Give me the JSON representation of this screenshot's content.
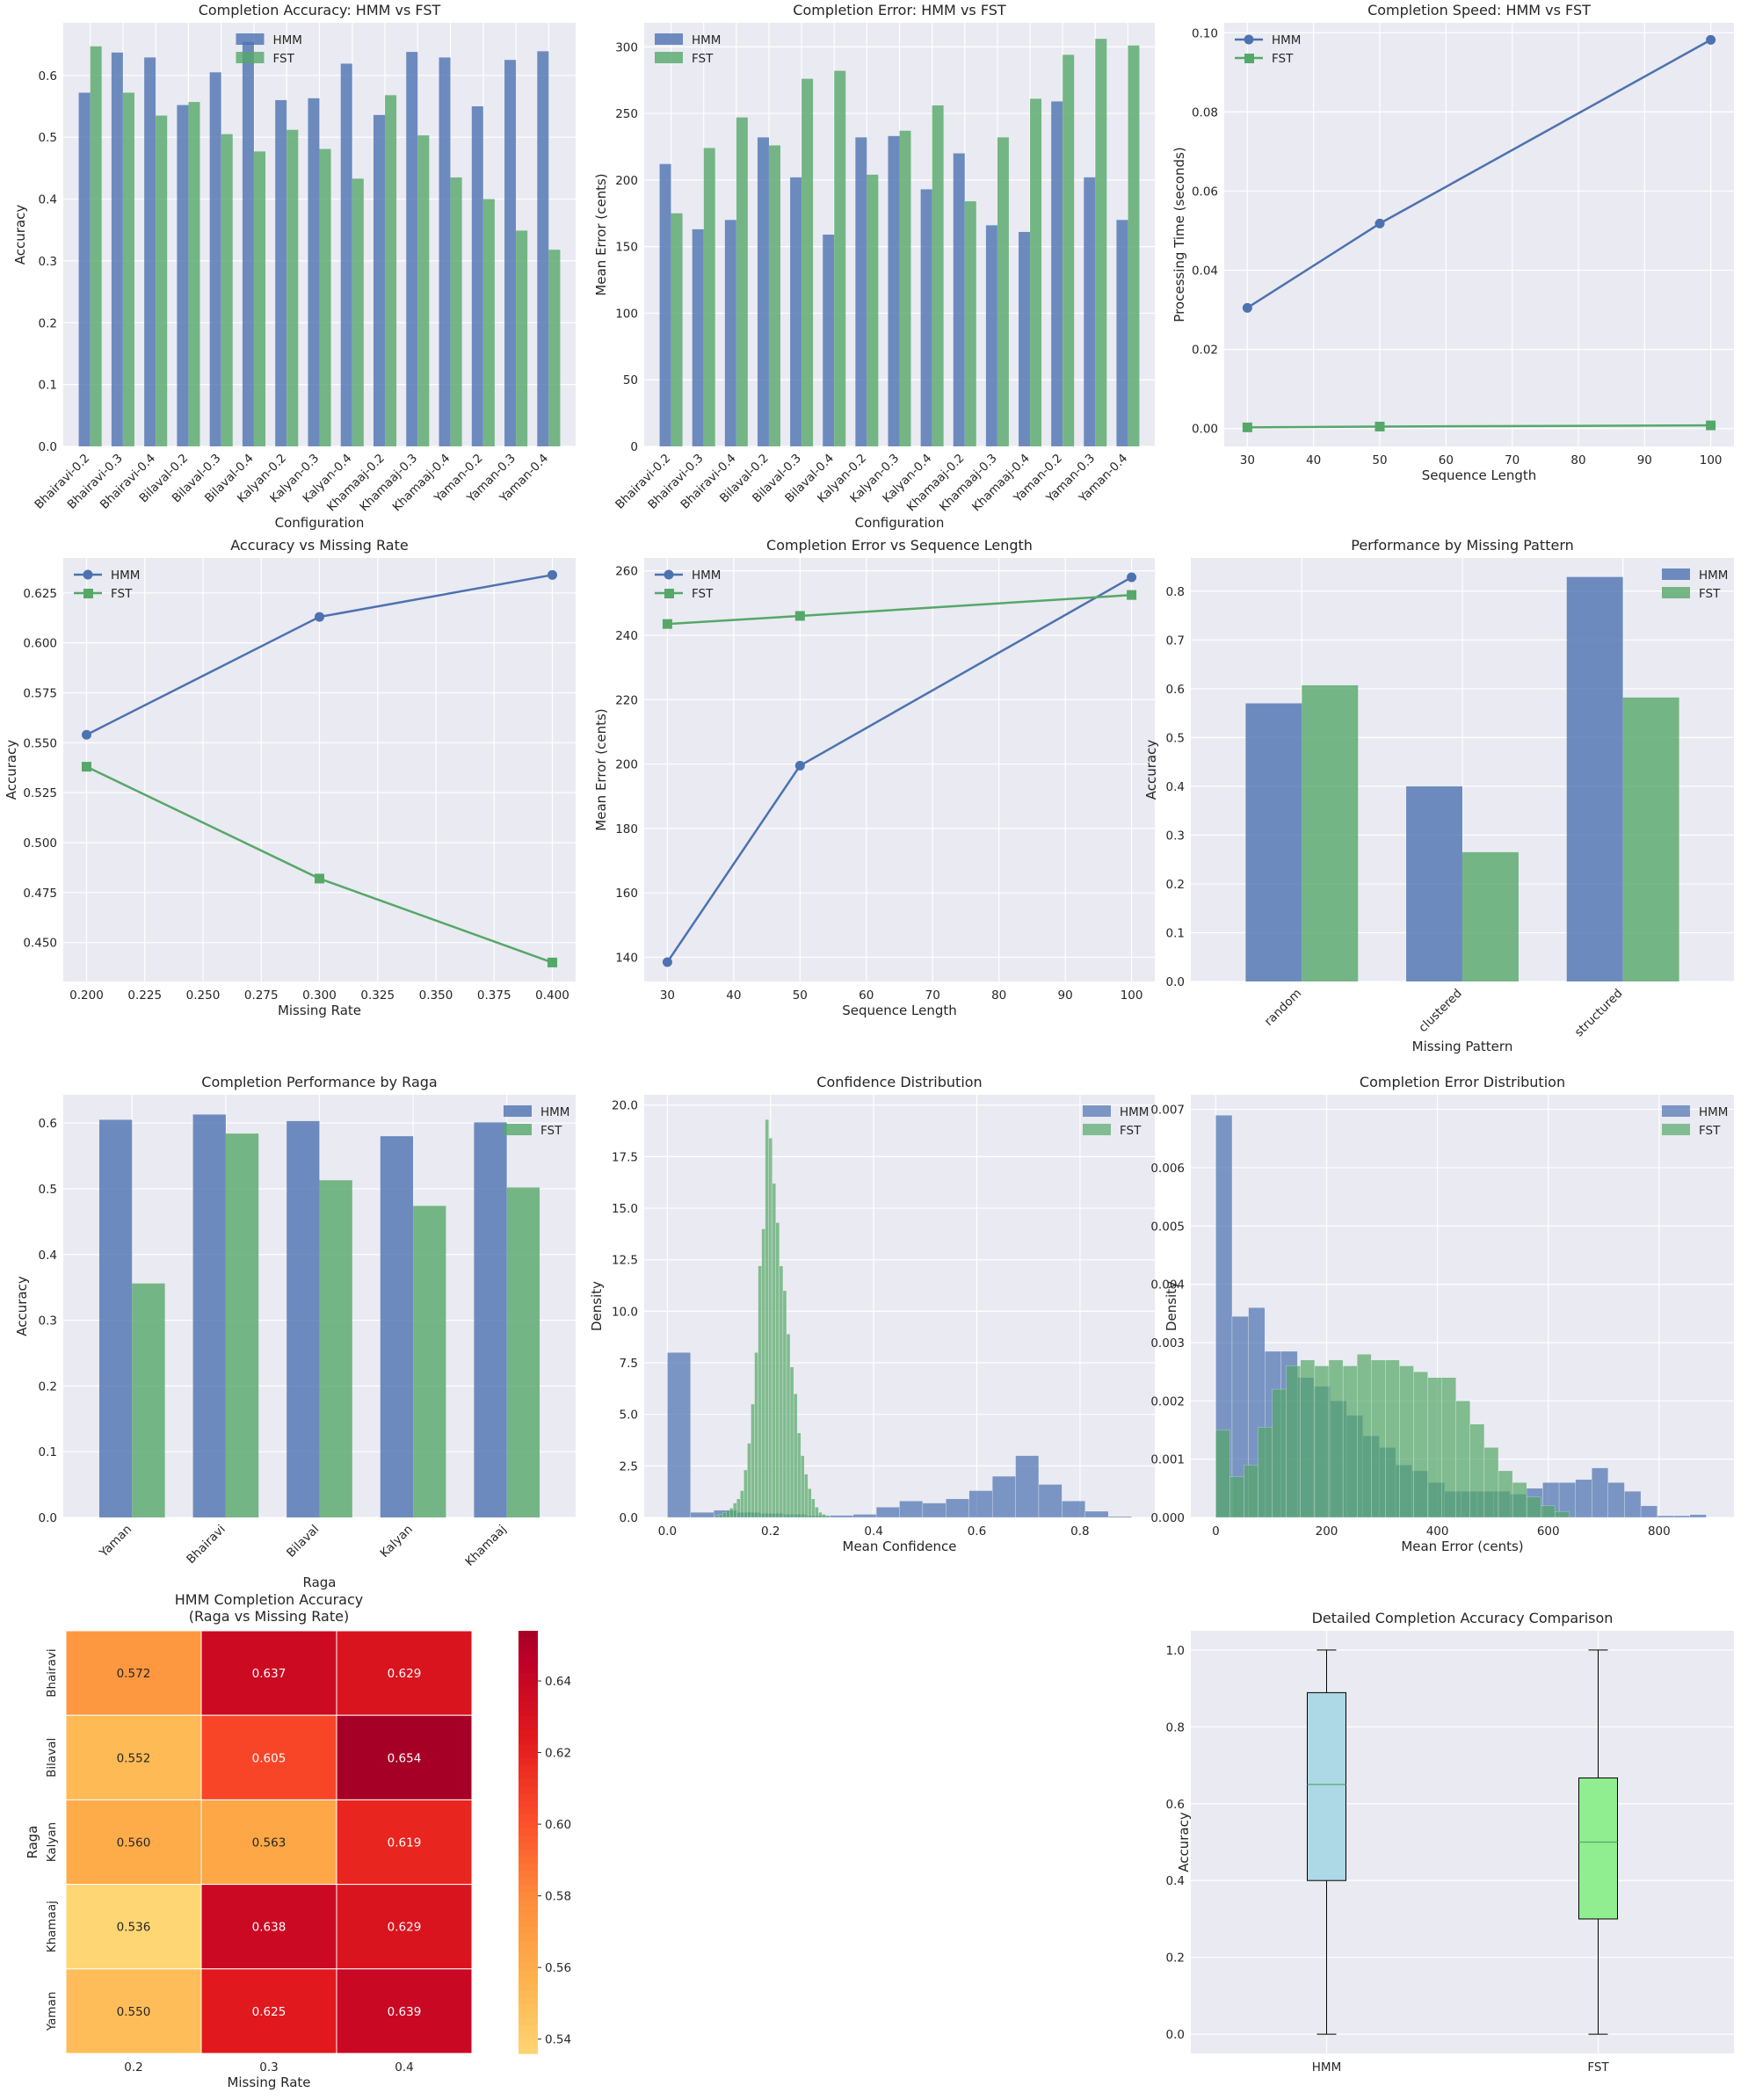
{
  "colors": {
    "hmm": "#4c72b0",
    "fst": "#55a868",
    "panel_bg": "#eaeaf2",
    "grid": "#ffffff",
    "box_hmm": "#add8e6",
    "box_fst": "#90ee90"
  },
  "legend": {
    "hmm": "HMM",
    "fst": "FST"
  },
  "chart_data": [
    {
      "id": "acc_bar",
      "type": "bar",
      "title": "Completion Accuracy: HMM vs FST",
      "xlabel": "Configuration",
      "ylabel": "Accuracy",
      "ylim": [
        0,
        0.685
      ],
      "yticks": [
        0.0,
        0.1,
        0.2,
        0.3,
        0.4,
        0.5,
        0.6
      ],
      "ytick_labels": [
        "0.0",
        "0.1",
        "0.2",
        "0.3",
        "0.4",
        "0.5",
        "0.6"
      ],
      "categories": [
        "Bhairavi-0.2",
        "Bhairavi-0.3",
        "Bhairavi-0.4",
        "Bilaval-0.2",
        "Bilaval-0.3",
        "Bilaval-0.4",
        "Kalyan-0.2",
        "Kalyan-0.3",
        "Kalyan-0.4",
        "Khamaaj-0.2",
        "Khamaaj-0.3",
        "Khamaaj-0.4",
        "Yaman-0.2",
        "Yaman-0.3",
        "Yaman-0.4"
      ],
      "series": [
        {
          "name": "HMM",
          "values": [
            0.572,
            0.637,
            0.629,
            0.552,
            0.605,
            0.654,
            0.56,
            0.563,
            0.619,
            0.536,
            0.638,
            0.629,
            0.55,
            0.625,
            0.639
          ]
        },
        {
          "name": "FST",
          "values": [
            0.647,
            0.572,
            0.535,
            0.557,
            0.505,
            0.477,
            0.512,
            0.481,
            0.433,
            0.568,
            0.503,
            0.435,
            0.4,
            0.349,
            0.318
          ]
        }
      ],
      "legend_loc": "upper center"
    },
    {
      "id": "err_bar",
      "type": "bar",
      "title": "Completion Error: HMM vs FST",
      "xlabel": "Configuration",
      "ylabel": "Mean Error (cents)",
      "ylim": [
        0,
        318
      ],
      "yticks": [
        0,
        50,
        100,
        150,
        200,
        250,
        300
      ],
      "ytick_labels": [
        "0",
        "50",
        "100",
        "150",
        "200",
        "250",
        "300"
      ],
      "categories": [
        "Bhairavi-0.2",
        "Bhairavi-0.3",
        "Bhairavi-0.4",
        "Bilaval-0.2",
        "Bilaval-0.3",
        "Bilaval-0.4",
        "Kalyan-0.2",
        "Kalyan-0.3",
        "Kalyan-0.4",
        "Khamaaj-0.2",
        "Khamaaj-0.3",
        "Khamaaj-0.4",
        "Yaman-0.2",
        "Yaman-0.3",
        "Yaman-0.4"
      ],
      "series": [
        {
          "name": "HMM",
          "values": [
            212,
            163,
            170,
            232,
            202,
            159,
            232,
            233,
            193,
            220,
            166,
            161,
            259,
            202,
            170
          ]
        },
        {
          "name": "FST",
          "values": [
            175,
            224,
            247,
            226,
            276,
            282,
            204,
            237,
            256,
            184,
            232,
            261,
            294,
            306,
            301
          ]
        }
      ],
      "legend_loc": "upper left"
    },
    {
      "id": "speed_line",
      "type": "line",
      "title": "Completion Speed: HMM vs FST",
      "xlabel": "Sequence Length",
      "ylabel": "Processing Time (seconds)",
      "xlim": [
        26.5,
        103.5
      ],
      "ylim": [
        -0.0045,
        0.1025
      ],
      "xticks": [
        30,
        40,
        50,
        60,
        70,
        80,
        90,
        100
      ],
      "xtick_labels": [
        "30",
        "40",
        "50",
        "60",
        "70",
        "80",
        "90",
        "100"
      ],
      "yticks": [
        0.0,
        0.02,
        0.04,
        0.06,
        0.08,
        0.1
      ],
      "ytick_labels": [
        "0.00",
        "0.02",
        "0.04",
        "0.06",
        "0.08",
        "0.10"
      ],
      "x": [
        30,
        50,
        100
      ],
      "series": [
        {
          "name": "HMM",
          "values": [
            0.0305,
            0.0518,
            0.0982
          ],
          "marker": "o"
        },
        {
          "name": "FST",
          "values": [
            0.0003,
            0.0005,
            0.0008
          ],
          "marker": "s"
        }
      ],
      "legend_loc": "upper left"
    },
    {
      "id": "acc_rate",
      "type": "line",
      "title": "Accuracy vs Missing Rate",
      "xlabel": "Missing Rate",
      "ylabel": "Accuracy",
      "xlim": [
        0.19,
        0.41
      ],
      "ylim": [
        0.4305,
        0.6425
      ],
      "xticks": [
        0.2,
        0.225,
        0.25,
        0.275,
        0.3,
        0.325,
        0.35,
        0.375,
        0.4
      ],
      "xtick_labels": [
        "0.200",
        "0.225",
        "0.250",
        "0.275",
        "0.300",
        "0.325",
        "0.350",
        "0.375",
        "0.400"
      ],
      "yticks": [
        0.45,
        0.475,
        0.5,
        0.525,
        0.55,
        0.575,
        0.6,
        0.625
      ],
      "ytick_labels": [
        "0.450",
        "0.475",
        "0.500",
        "0.525",
        "0.550",
        "0.575",
        "0.600",
        "0.625"
      ],
      "x": [
        0.2,
        0.3,
        0.4
      ],
      "series": [
        {
          "name": "HMM",
          "values": [
            0.554,
            0.613,
            0.634
          ],
          "marker": "o"
        },
        {
          "name": "FST",
          "values": [
            0.538,
            0.482,
            0.44
          ],
          "marker": "s"
        }
      ],
      "legend_loc": "upper left"
    },
    {
      "id": "err_len",
      "type": "line",
      "title": "Completion Error vs Sequence Length",
      "xlabel": "Sequence Length",
      "ylabel": "Mean Error (cents)",
      "xlim": [
        26.5,
        103.5
      ],
      "ylim": [
        132.5,
        264
      ],
      "xticks": [
        30,
        40,
        50,
        60,
        70,
        80,
        90,
        100
      ],
      "xtick_labels": [
        "30",
        "40",
        "50",
        "60",
        "70",
        "80",
        "90",
        "100"
      ],
      "yticks": [
        140,
        160,
        180,
        200,
        220,
        240,
        260
      ],
      "ytick_labels": [
        "140",
        "160",
        "180",
        "200",
        "220",
        "240",
        "260"
      ],
      "x": [
        30,
        50,
        100
      ],
      "series": [
        {
          "name": "HMM",
          "values": [
            138.5,
            199.5,
            258
          ],
          "marker": "o"
        },
        {
          "name": "FST",
          "values": [
            243.5,
            246,
            252.5
          ],
          "marker": "s"
        }
      ],
      "legend_loc": "upper left"
    },
    {
      "id": "pattern_bar",
      "type": "bar",
      "title": "Performance by Missing Pattern",
      "xlabel": "Missing Pattern",
      "ylabel": "Accuracy",
      "ylim": [
        0,
        0.868
      ],
      "yticks": [
        0.0,
        0.1,
        0.2,
        0.3,
        0.4,
        0.5,
        0.6,
        0.7,
        0.8
      ],
      "ytick_labels": [
        "0.0",
        "0.1",
        "0.2",
        "0.3",
        "0.4",
        "0.5",
        "0.6",
        "0.7",
        "0.8"
      ],
      "categories": [
        "random",
        "clustered",
        "structured"
      ],
      "series": [
        {
          "name": "HMM",
          "values": [
            0.57,
            0.4,
            0.829
          ]
        },
        {
          "name": "FST",
          "values": [
            0.607,
            0.265,
            0.582
          ]
        }
      ],
      "legend_loc": "upper right"
    },
    {
      "id": "raga_bar",
      "type": "bar",
      "title": "Completion Performance by Raga",
      "xlabel": "Raga",
      "ylabel": "Accuracy",
      "ylim": [
        0,
        0.643
      ],
      "yticks": [
        0.0,
        0.1,
        0.2,
        0.3,
        0.4,
        0.5,
        0.6
      ],
      "ytick_labels": [
        "0.0",
        "0.1",
        "0.2",
        "0.3",
        "0.4",
        "0.5",
        "0.6"
      ],
      "categories": [
        "Yaman",
        "Bhairavi",
        "Bilaval",
        "Kalyan",
        "Khamaaj"
      ],
      "series": [
        {
          "name": "HMM",
          "values": [
            0.605,
            0.613,
            0.603,
            0.58,
            0.601
          ]
        },
        {
          "name": "FST",
          "values": [
            0.356,
            0.584,
            0.513,
            0.474,
            0.502
          ]
        }
      ],
      "legend_loc": "upper right"
    },
    {
      "id": "conf_hist",
      "type": "histogram",
      "title": "Confidence Distribution",
      "xlabel": "Mean Confidence",
      "ylabel": "Density",
      "xlim": [
        -0.045,
        0.945
      ],
      "ylim": [
        0,
        20.5
      ],
      "xticks": [
        0.0,
        0.2,
        0.4,
        0.6,
        0.8
      ],
      "xtick_labels": [
        "0.0",
        "0.2",
        "0.4",
        "0.6",
        "0.8"
      ],
      "yticks": [
        0,
        2.5,
        5,
        7.5,
        10,
        12.5,
        15,
        17.5,
        20
      ],
      "ytick_labels": [
        "0.0",
        "2.5",
        "5.0",
        "7.5",
        "10.0",
        "12.5",
        "15.0",
        "17.5",
        "20.0"
      ],
      "series": [
        {
          "name": "HMM",
          "bin_start": 0.0,
          "bin_width": 0.045,
          "values": [
            8.0,
            0.25,
            0.35,
            0.25,
            0.2,
            0.15,
            0.1,
            0.1,
            0.15,
            0.5,
            0.8,
            0.7,
            0.9,
            1.3,
            2.0,
            3.0,
            1.6,
            0.8,
            0.3,
            0.05
          ]
        },
        {
          "name": "FST",
          "bin_start": 0.093,
          "bin_width": 0.0069,
          "values": [
            0.1,
            0.15,
            0.25,
            0.35,
            0.45,
            0.7,
            0.9,
            1.3,
            2.3,
            3.6,
            5.5,
            8.0,
            12.2,
            14.0,
            19.3,
            18.4,
            16.2,
            14.3,
            12.2,
            11.0,
            8.9,
            7.3,
            6.0,
            4.1,
            3.0,
            2.1,
            1.4,
            0.9,
            0.5,
            0.25,
            0.15,
            0.08
          ]
        }
      ],
      "legend_loc": "upper right"
    },
    {
      "id": "err_hist",
      "type": "histogram",
      "title": "Completion Error Distribution",
      "xlabel": "Mean Error (cents)",
      "ylabel": "Density",
      "xlim": [
        -45,
        935
      ],
      "ylim": [
        0,
        0.00725
      ],
      "xticks": [
        0,
        200,
        400,
        600,
        800
      ],
      "xtick_labels": [
        "0",
        "200",
        "400",
        "600",
        "800"
      ],
      "yticks": [
        0,
        0.001,
        0.002,
        0.003,
        0.004,
        0.005,
        0.006,
        0.007
      ],
      "ytick_labels": [
        "0.000",
        "0.001",
        "0.002",
        "0.003",
        "0.004",
        "0.005",
        "0.006",
        "0.007"
      ],
      "series": [
        {
          "name": "HMM",
          "bin_start": 0,
          "bin_width": 29.5,
          "values": [
            0.0069,
            0.00345,
            0.0036,
            0.00285,
            0.00285,
            0.0024,
            0.00225,
            0.002,
            0.00175,
            0.0014,
            0.0012,
            0.0009,
            0.0008,
            0.0006,
            0.00045,
            0.00045,
            0.00045,
            0.00045,
            0.0004,
            0.0005,
            0.0006,
            0.0006,
            0.00065,
            0.00085,
            0.0006,
            0.00045,
            0.0002,
            3e-05,
            3e-05,
            5e-05
          ]
        },
        {
          "name": "FST",
          "bin_start": 0,
          "bin_width": 25.5,
          "values": [
            0.0015,
            0.0007,
            0.0009,
            0.00155,
            0.0022,
            0.0026,
            0.0027,
            0.0026,
            0.0027,
            0.0026,
            0.0028,
            0.0027,
            0.0027,
            0.0026,
            0.0025,
            0.0024,
            0.0024,
            0.002,
            0.0016,
            0.0012,
            0.0008,
            0.0006,
            0.00035,
            0.0002,
            0.0001
          ]
        }
      ],
      "legend_loc": "upper right"
    },
    {
      "id": "heatmap",
      "type": "heatmap",
      "title": "HMM Completion Accuracy\n(Raga vs Missing Rate)",
      "xlabel": "Missing Rate",
      "ylabel": "Raga",
      "rows": [
        "Bhairavi",
        "Bilaval",
        "Kalyan",
        "Khamaaj",
        "Yaman"
      ],
      "cols": [
        "0.2",
        "0.3",
        "0.4"
      ],
      "values": [
        [
          0.572,
          0.637,
          0.629
        ],
        [
          0.552,
          0.605,
          0.654
        ],
        [
          0.56,
          0.563,
          0.619
        ],
        [
          0.536,
          0.638,
          0.629
        ],
        [
          0.55,
          0.625,
          0.639
        ]
      ],
      "labels": [
        [
          "0.572",
          "0.637",
          "0.629"
        ],
        [
          "0.552",
          "0.605",
          "0.654"
        ],
        [
          "0.560",
          "0.563",
          "0.619"
        ],
        [
          "0.536",
          "0.638",
          "0.629"
        ],
        [
          "0.550",
          "0.625",
          "0.639"
        ]
      ],
      "colorbar": {
        "min": 0.536,
        "max": 0.654,
        "ticks": [
          0.54,
          0.56,
          0.58,
          0.6,
          0.62,
          0.64
        ],
        "tick_labels": [
          "0.54",
          "0.56",
          "0.58",
          "0.60",
          "0.62",
          "0.64"
        ],
        "colormap": "YlOrRd"
      }
    },
    {
      "id": "box",
      "type": "box",
      "title": "Detailed Completion Accuracy Comparison",
      "xlabel": "",
      "ylabel": "Accuracy",
      "ylim": [
        -0.05,
        1.05
      ],
      "yticks": [
        0.0,
        0.2,
        0.4,
        0.6,
        0.8,
        1.0
      ],
      "ytick_labels": [
        "0.0",
        "0.2",
        "0.4",
        "0.6",
        "0.8",
        "1.0"
      ],
      "categories": [
        "HMM",
        "FST"
      ],
      "boxes": [
        {
          "name": "HMM",
          "min": 0.0,
          "q1": 0.4,
          "median": 0.65,
          "q3": 0.889,
          "max": 1.0
        },
        {
          "name": "FST",
          "min": 0.0,
          "q1": 0.3,
          "median": 0.5,
          "q3": 0.667,
          "max": 1.0
        }
      ]
    }
  ]
}
